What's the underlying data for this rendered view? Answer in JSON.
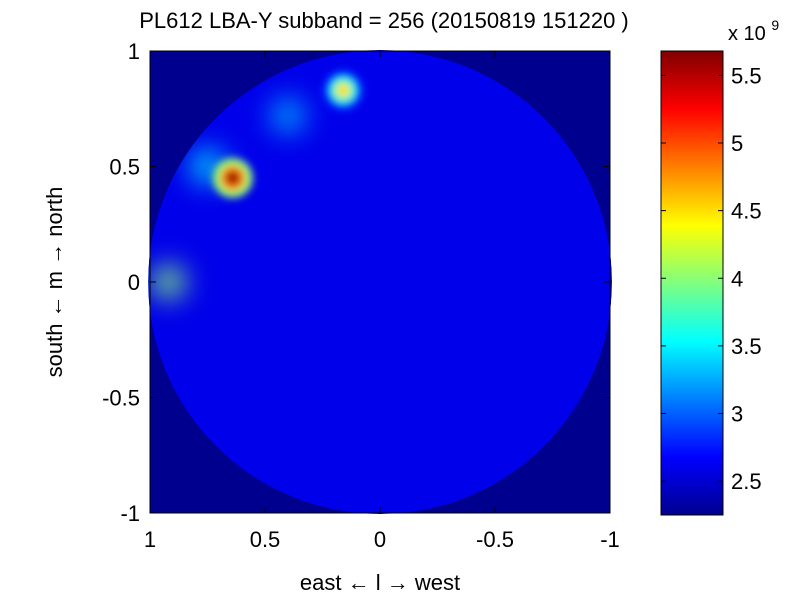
{
  "chart_data": {
    "type": "heatmap",
    "title": "PL612 LBA-Y subband = 256 (20150819 151220 )",
    "xlabel": "east ← l → west",
    "ylabel": "south ← m → north",
    "xlim": [
      1,
      -1
    ],
    "ylim": [
      -1,
      1
    ],
    "xticks": [
      1,
      0.5,
      0,
      -0.5,
      -1
    ],
    "xtick_labels": [
      "1",
      "0.5",
      "0",
      "-0.5",
      "-1"
    ],
    "yticks": [
      1,
      0.5,
      0,
      -0.5,
      -1
    ],
    "ytick_labels": [
      "1",
      "0.5",
      "0",
      "-0.5",
      "-1"
    ],
    "colormap": "jet",
    "colorbar": {
      "exponent_label": "x 10",
      "exponent": "9",
      "range": [
        2.25,
        5.68
      ],
      "ticks": [
        2.5,
        3,
        3.5,
        4,
        4.5,
        5,
        5.5
      ],
      "tick_labels": [
        "2.5",
        "3",
        "3.5",
        "4",
        "4.5",
        "5",
        "5.5"
      ]
    },
    "background_value": 2.25,
    "base_value": 2.6,
    "sources": [
      {
        "l": 0.64,
        "m": 0.45,
        "value": 5.6
      },
      {
        "l": 0.16,
        "m": 0.83,
        "value": 4.5
      }
    ],
    "features": [
      {
        "l": 0.92,
        "m": 0.0,
        "value": 4.0
      },
      {
        "l": 0.75,
        "m": 0.5,
        "value": 3.5
      },
      {
        "l": 0.4,
        "m": 0.72,
        "value": 3.3
      }
    ]
  }
}
